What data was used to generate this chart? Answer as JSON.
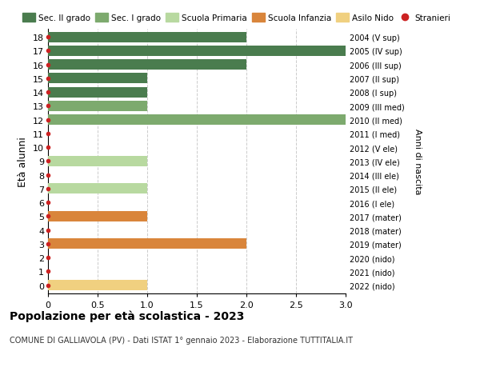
{
  "ages": [
    18,
    17,
    16,
    15,
    14,
    13,
    12,
    11,
    10,
    9,
    8,
    7,
    6,
    5,
    4,
    3,
    2,
    1,
    0
  ],
  "right_labels": [
    "2004 (V sup)",
    "2005 (IV sup)",
    "2006 (III sup)",
    "2007 (II sup)",
    "2008 (I sup)",
    "2009 (III med)",
    "2010 (II med)",
    "2011 (I med)",
    "2012 (V ele)",
    "2013 (IV ele)",
    "2014 (III ele)",
    "2015 (II ele)",
    "2016 (I ele)",
    "2017 (mater)",
    "2018 (mater)",
    "2019 (mater)",
    "2020 (nido)",
    "2021 (nido)",
    "2022 (nido)"
  ],
  "bar_values": [
    2,
    3,
    2,
    1,
    1,
    1,
    3,
    0,
    0,
    1,
    0,
    1,
    0,
    1,
    0,
    2,
    0,
    0,
    1
  ],
  "bar_colors": [
    "#4a7c4e",
    "#4a7c4e",
    "#4a7c4e",
    "#4a7c4e",
    "#4a7c4e",
    "#7daa6e",
    "#7daa6e",
    "#7daa6e",
    "#b8d9a0",
    "#b8d9a0",
    "#b8d9a0",
    "#b8d9a0",
    "#b8d9a0",
    "#d9853b",
    "#d9853b",
    "#d9853b",
    "#f0d080",
    "#f0d080",
    "#f0d080"
  ],
  "stranieri_dots": [
    18,
    17,
    16,
    15,
    14,
    13,
    12,
    11,
    10,
    9,
    8,
    7,
    6,
    5,
    4,
    3,
    2,
    1,
    0
  ],
  "legend_labels": [
    "Sec. II grado",
    "Sec. I grado",
    "Scuola Primaria",
    "Scuola Infanzia",
    "Asilo Nido",
    "Stranieri"
  ],
  "legend_colors": [
    "#4a7c4e",
    "#7daa6e",
    "#b8d9a0",
    "#d9853b",
    "#f0d080",
    "#cc2222"
  ],
  "ylabel": "Età alunni",
  "right_ylabel": "Anni di nascita",
  "title": "Popolazione per età scolastica - 2023",
  "subtitle": "COMUNE DI GALLIAVOLA (PV) - Dati ISTAT 1° gennaio 2023 - Elaborazione TUTTITALIA.IT",
  "xlim": [
    0,
    3.0
  ],
  "xtick_vals": [
    0,
    0.5,
    1.0,
    1.5,
    2.0,
    2.5,
    3.0
  ],
  "xtick_labels": [
    "0",
    "0.5",
    "1.0",
    "1.5",
    "2.0",
    "2.5",
    "3.0"
  ],
  "grid_color": "#cccccc",
  "bar_height": 0.75
}
